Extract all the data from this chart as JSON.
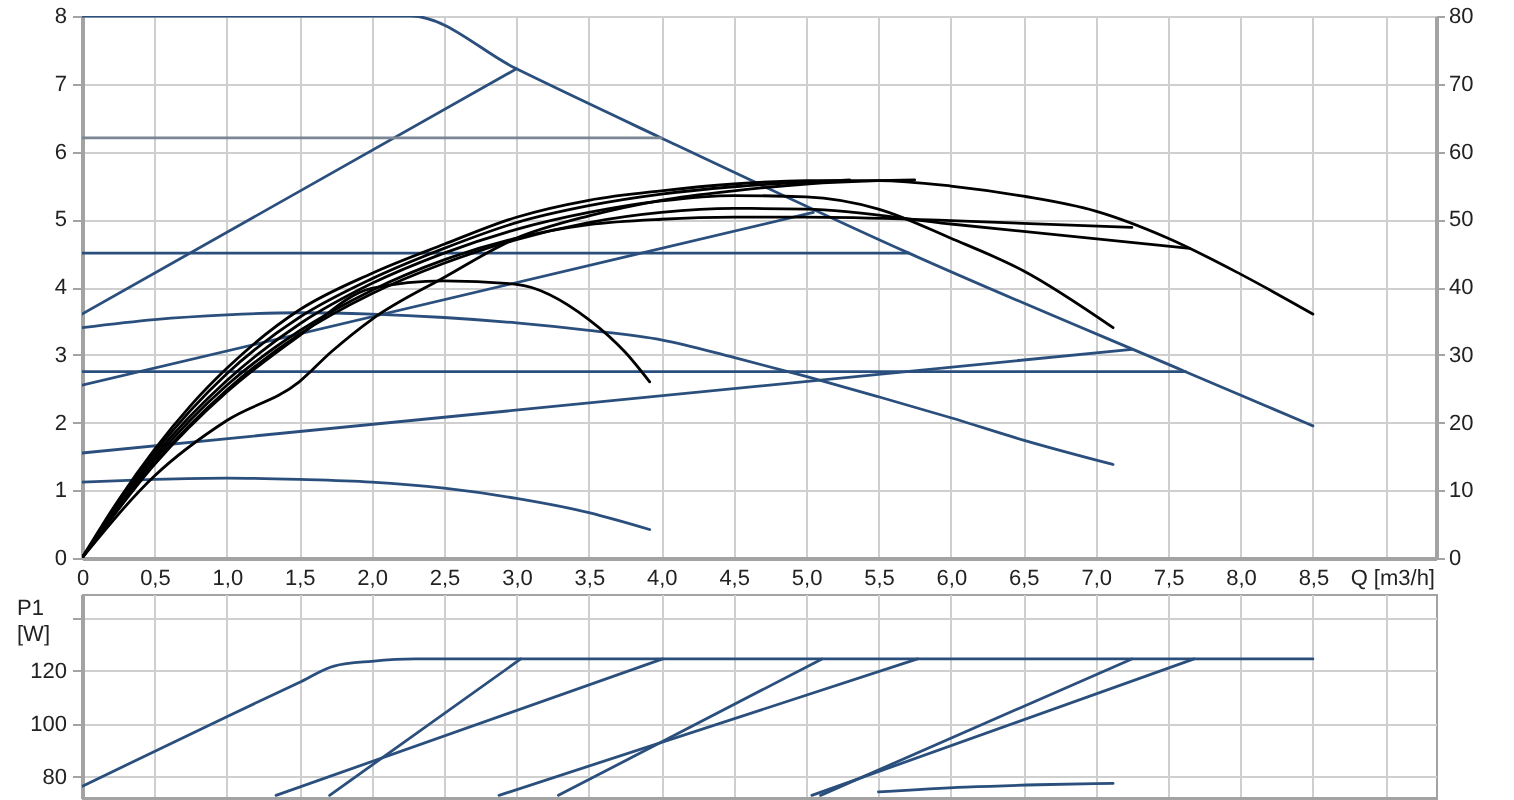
{
  "chart_data": [
    {
      "type": "line",
      "xlabel": "Q [m3/h]",
      "xlim": [
        0,
        9.35
      ],
      "xticks": [
        0,
        {
          "value": 0.5,
          "label": "0,5"
        },
        {
          "value": 1,
          "label": "1,0"
        },
        {
          "value": 1.5,
          "label": "1,5"
        },
        {
          "value": 2,
          "label": "2,0"
        },
        {
          "value": 2.5,
          "label": "2,5"
        },
        {
          "value": 3,
          "label": "3,0"
        },
        {
          "value": 3.5,
          "label": "3,5"
        },
        {
          "value": 4,
          "label": "4,0"
        },
        {
          "value": 4.5,
          "label": "4,5"
        },
        {
          "value": 5,
          "label": "5,0"
        },
        {
          "value": 5.5,
          "label": "5,5"
        },
        {
          "value": 6,
          "label": "6,0"
        },
        {
          "value": 6.5,
          "label": "6,5"
        },
        {
          "value": 7,
          "label": "7,0"
        },
        {
          "value": 7.5,
          "label": "7,5"
        },
        {
          "value": 8,
          "label": "8,0"
        },
        {
          "value": 8.5,
          "label": "8,5"
        },
        {
          "value": 9,
          "label": null
        }
      ],
      "ylim": [
        0,
        8
      ],
      "yticks": [
        0,
        1,
        2,
        3,
        4,
        5,
        6,
        7,
        8
      ],
      "y2lim": [
        0,
        80
      ],
      "y2ticks": [
        0,
        10,
        20,
        30,
        40,
        50,
        60,
        70,
        80
      ],
      "grid": true,
      "series": [
        {
          "color": "#2b4f7d",
          "x": [
            0,
            2.27,
            3.0,
            4.0,
            5.71,
            7.62,
            8.5
          ],
          "values": [
            8,
            8,
            7.22,
            6.2,
            4.5,
            2.75,
            1.95
          ]
        },
        {
          "color": "#2b4f7d",
          "x": [
            0,
            3.0
          ],
          "values": [
            3.6,
            7.22
          ]
        },
        {
          "color": "#7a8694",
          "x": [
            0,
            4.0
          ],
          "values": [
            6.2,
            6.2
          ]
        },
        {
          "color": "#2b4f7d",
          "x": [
            0,
            5.71
          ],
          "values": [
            4.5,
            4.5
          ]
        },
        {
          "color": "#2b4f7d",
          "x": [
            0,
            7.62
          ],
          "values": [
            2.75,
            2.75
          ]
        },
        {
          "color": "#2b4f7d",
          "x": [
            0,
            5.05
          ],
          "values": [
            2.55,
            5.1
          ]
        },
        {
          "color": "#2b4f7d",
          "x": [
            0,
            7.25
          ],
          "values": [
            1.55,
            3.08
          ]
        },
        {
          "color": "#2b4f7d",
          "x": [
            0,
            0.5,
            1.0,
            1.5,
            2.0,
            2.5,
            3.0,
            3.5,
            4.0,
            4.5,
            5.0,
            5.5,
            6.0,
            6.5,
            7.12
          ],
          "values": [
            3.4,
            3.52,
            3.59,
            3.62,
            3.6,
            3.55,
            3.47,
            3.36,
            3.22,
            2.96,
            2.68,
            2.38,
            2.07,
            1.74,
            1.38
          ]
        },
        {
          "color": "#2b4f7d",
          "x": [
            0,
            0.5,
            1.0,
            1.5,
            2.0,
            2.5,
            3.0,
            3.5,
            3.92
          ],
          "values": [
            1.12,
            1.16,
            1.18,
            1.16,
            1.12,
            1.03,
            0.88,
            0.67,
            0.42
          ]
        },
        {
          "color": "#000000",
          "x": [
            0,
            0.25,
            0.5,
            0.75,
            1.0,
            1.5,
            2.0,
            2.5,
            3.0,
            3.5,
            4.0,
            4.5,
            5.0,
            5.5,
            6.0,
            6.5,
            7.0,
            7.5,
            8.0,
            8.5
          ],
          "values": [
            0,
            0.85,
            1.6,
            2.25,
            2.8,
            3.66,
            4.2,
            4.63,
            5.03,
            5.28,
            5.42,
            5.52,
            5.57,
            5.57,
            5.49,
            5.34,
            5.12,
            4.72,
            4.19,
            3.6
          ]
        },
        {
          "color": "#000000",
          "x": [
            0,
            0.5,
            1.0,
            1.5,
            2.0,
            2.5,
            3.0,
            3.5,
            4.0,
            4.5,
            5.0,
            5.5,
            6.0,
            6.5,
            7.12
          ],
          "values": [
            0,
            1.5,
            2.62,
            3.45,
            4.05,
            4.5,
            4.85,
            5.1,
            5.27,
            5.35,
            5.33,
            5.15,
            4.72,
            4.24,
            3.4
          ]
        },
        {
          "color": "#000000",
          "x": [
            0,
            0.5,
            1.0,
            1.5,
            2.0,
            2.5,
            3.0,
            3.5,
            4.0,
            4.5,
            5.0,
            6.0,
            7.25
          ],
          "values": [
            0,
            1.45,
            2.55,
            3.35,
            3.95,
            4.4,
            4.72,
            4.92,
            5.0,
            5.03,
            5.03,
            4.98,
            4.88
          ]
        },
        {
          "color": "#000000",
          "x": [
            0,
            0.5,
            1.0,
            1.5,
            2.0,
            2.5,
            3.0,
            3.5,
            4.0,
            4.5,
            5.0,
            6.0,
            7.65
          ],
          "values": [
            0,
            1.4,
            2.48,
            3.3,
            3.9,
            4.35,
            4.7,
            4.95,
            5.1,
            5.16,
            5.15,
            4.93,
            4.57
          ]
        },
        {
          "color": "#000000",
          "x": [
            0,
            0.5,
            1.0,
            1.5,
            2.0,
            2.5,
            3.0,
            3.5,
            3.75,
            3.92
          ],
          "values": [
            0,
            1.38,
            2.45,
            3.28,
            3.98,
            4.09,
            4.04,
            3.52,
            3.04,
            2.6
          ]
        },
        {
          "color": "#000000",
          "x": [
            0,
            0.5,
            1.0,
            1.5,
            1.72,
            2.0,
            2.5,
            3.0,
            3.5,
            4.0,
            4.5,
            5.0,
            5.5,
            5.75
          ],
          "values": [
            0,
            1.21,
            2.03,
            2.6,
            3.04,
            3.52,
            4.14,
            4.72,
            5.05,
            5.28,
            5.42,
            5.52,
            5.57,
            5.58
          ]
        },
        {
          "color": "#000000",
          "x": [
            0,
            0.5,
            1.0,
            1.5,
            2.0,
            2.5,
            3.0,
            3.5,
            4.0,
            4.5,
            5.0,
            5.3
          ],
          "values": [
            0,
            1.55,
            2.72,
            3.55,
            4.12,
            4.57,
            4.95,
            5.2,
            5.37,
            5.48,
            5.55,
            5.58
          ]
        }
      ]
    },
    {
      "type": "line",
      "ylabel": "P1 [W]",
      "tick_labels": "y",
      "xlim": [
        0,
        9.35
      ],
      "xticks": [
        0,
        0.5,
        1,
        1.5,
        2,
        2.5,
        3,
        3.5,
        4,
        4.5,
        5,
        5.5,
        6,
        6.5,
        7,
        7.5,
        8,
        8.5,
        9
      ],
      "ylim": [
        72,
        149
      ],
      "yticks": [
        80,
        100,
        120,
        {
          "value": 140,
          "label": null
        }
      ],
      "grid": true,
      "series": [
        {
          "color": "#2b4f7d",
          "x": [
            0,
            1.0,
            1.5,
            1.74,
            2.0,
            2.3,
            8.5
          ],
          "values": [
            76.4,
            102.7,
            115.6,
            121.8,
            123.6,
            124.5,
            124.5
          ]
        },
        {
          "color": "#2b4f7d",
          "x": [
            1.71,
            3.03
          ],
          "values": [
            73,
            124.5
          ]
        },
        {
          "color": "#2b4f7d",
          "x": [
            1.34,
            4.01
          ],
          "values": [
            73,
            124.5
          ]
        },
        {
          "color": "#2b4f7d",
          "x": [
            2.88,
            5.77
          ],
          "values": [
            73,
            124.5
          ]
        },
        {
          "color": "#2b4f7d",
          "x": [
            3.29,
            5.11
          ],
          "values": [
            73,
            124.5
          ]
        },
        {
          "color": "#2b4f7d",
          "x": [
            5.1,
            7.25
          ],
          "values": [
            73,
            124.5
          ]
        },
        {
          "color": "#2b4f7d",
          "x": [
            5.04,
            7.68
          ],
          "values": [
            73,
            124.5
          ]
        },
        {
          "color": "#2b4f7d",
          "x": [
            5.5,
            6.1,
            6.6,
            7.12
          ],
          "values": [
            74.3,
            76.1,
            77.0,
            77.5
          ]
        }
      ]
    }
  ]
}
